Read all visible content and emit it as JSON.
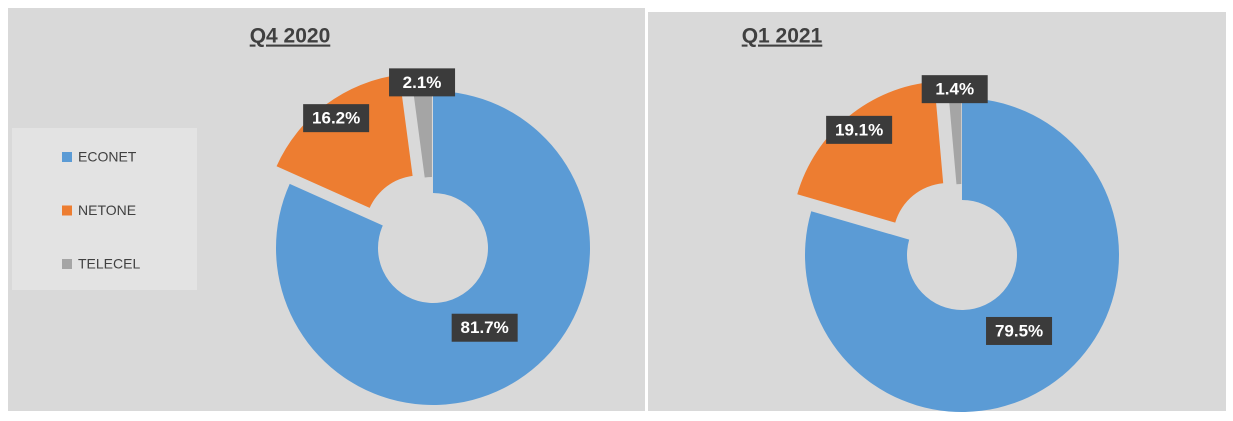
{
  "chart_data": [
    {
      "type": "pie",
      "title": "Q4 2020",
      "categories": [
        "ECONET",
        "NETONE",
        "TELECEL"
      ],
      "values": [
        81.7,
        16.2,
        2.1
      ],
      "value_labels": [
        "81.7%",
        "16.2%",
        "2.1%"
      ],
      "colors": [
        "#5b9bd5",
        "#ed7d31",
        "#a5a5a5"
      ],
      "legend": "left"
    },
    {
      "type": "pie",
      "title": "Q1 2021",
      "categories": [
        "ECONET",
        "NETONE",
        "TELECEL"
      ],
      "values": [
        79.5,
        19.1,
        1.4
      ],
      "value_labels": [
        "79.5%",
        "19.1%",
        "1.4%"
      ],
      "colors": [
        "#5b9bd5",
        "#ed7d31",
        "#a5a5a5"
      ]
    }
  ]
}
